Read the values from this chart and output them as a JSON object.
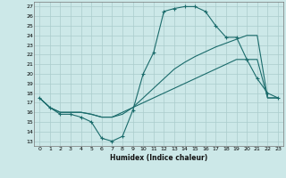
{
  "xlabel": "Humidex (Indice chaleur)",
  "bg_color": "#cce8e8",
  "line_color": "#1a6b6b",
  "grid_color": "#aacccc",
  "x_ticks": [
    0,
    1,
    2,
    3,
    4,
    5,
    6,
    7,
    8,
    9,
    10,
    11,
    12,
    13,
    14,
    15,
    16,
    17,
    18,
    19,
    20,
    21,
    22,
    23
  ],
  "y_ticks": [
    13,
    14,
    15,
    16,
    17,
    18,
    19,
    20,
    21,
    22,
    23,
    24,
    25,
    26,
    27
  ],
  "xlim": [
    -0.5,
    23.5
  ],
  "ylim": [
    12.5,
    27.5
  ],
  "line1_x": [
    0,
    1,
    2,
    3,
    4,
    5,
    6,
    7,
    8,
    9,
    10,
    11,
    12,
    13,
    14,
    15,
    16,
    17,
    18,
    19,
    20,
    21,
    22,
    23
  ],
  "line1_y": [
    17.5,
    16.5,
    15.8,
    15.8,
    15.5,
    15.0,
    13.3,
    13.0,
    13.5,
    16.2,
    20.0,
    22.2,
    26.5,
    26.8,
    27.0,
    27.0,
    26.5,
    25.0,
    23.8,
    23.8,
    21.5,
    19.5,
    18.0,
    17.5
  ],
  "line2_x": [
    0,
    1,
    2,
    3,
    4,
    5,
    6,
    7,
    8,
    9,
    10,
    11,
    12,
    13,
    14,
    15,
    16,
    17,
    18,
    19,
    20,
    21,
    22,
    23
  ],
  "line2_y": [
    17.5,
    16.5,
    16.0,
    16.0,
    16.0,
    15.8,
    15.5,
    15.5,
    16.0,
    16.5,
    17.0,
    17.5,
    18.0,
    18.5,
    19.0,
    19.5,
    20.0,
    20.5,
    21.0,
    21.5,
    21.5,
    21.5,
    17.5,
    17.5
  ],
  "line3_x": [
    0,
    1,
    2,
    3,
    4,
    5,
    6,
    7,
    8,
    9,
    10,
    11,
    12,
    13,
    14,
    15,
    16,
    17,
    18,
    19,
    20,
    21,
    22,
    23
  ],
  "line3_y": [
    17.5,
    16.5,
    16.0,
    16.0,
    16.0,
    15.8,
    15.5,
    15.5,
    15.8,
    16.5,
    17.5,
    18.5,
    19.5,
    20.5,
    21.2,
    21.8,
    22.3,
    22.8,
    23.2,
    23.6,
    24.0,
    24.0,
    17.5,
    17.5
  ]
}
